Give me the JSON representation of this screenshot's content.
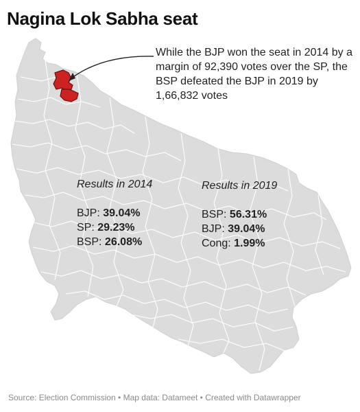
{
  "title": "Nagina Lok Sabha seat",
  "annotation": "While the BJP won the seat in 2014 by a margin of 92,390 votes over the SP, the BSP defeated the BJP in 2019 by 1,66,832 votes",
  "results_2014": {
    "heading": "Results in 2014",
    "rows": [
      {
        "party": "BJP:",
        "share": "39.04%"
      },
      {
        "party": "SP:",
        "share": "29.23%"
      },
      {
        "party": "BSP:",
        "share": "26.08%"
      }
    ]
  },
  "results_2019": {
    "heading": "Results in 2019",
    "rows": [
      {
        "party": "BSP:",
        "share": "56.31%"
      },
      {
        "party": "BJP:",
        "share": "39.04%"
      },
      {
        "party": "Cong:",
        "share": "1.99%"
      }
    ]
  },
  "footer": "Source: Election Commission • Map data: Datameet • Created with Datawrapper",
  "colors": {
    "state_fill": "#dcdcdc",
    "boundary": "#ffffff",
    "highlight": "#cc2222",
    "highlight_stroke": "#6a0f0f"
  }
}
